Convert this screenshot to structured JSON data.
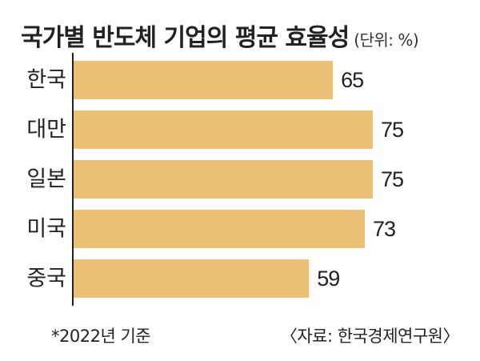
{
  "title": "국가별 반도체 기업의 평균 효율성",
  "unit": "(단위: %)",
  "footnote": "*2022년 기준",
  "source": "〈자료: 한국경제연구원〉",
  "colors": {
    "bar": "#EDC077",
    "axis": "#222222",
    "text": "#222222"
  },
  "chart_data": {
    "type": "bar",
    "orientation": "horizontal",
    "title": "국가별 반도체 기업의 평균 효율성",
    "categories": [
      "한국",
      "대만",
      "일본",
      "미국",
      "중국"
    ],
    "values": [
      65,
      75,
      75,
      73,
      59
    ],
    "data_labels": [
      "65",
      "75",
      "75",
      "73",
      "59"
    ],
    "xlim": [
      0,
      75
    ],
    "grid": false,
    "legend": "none"
  }
}
